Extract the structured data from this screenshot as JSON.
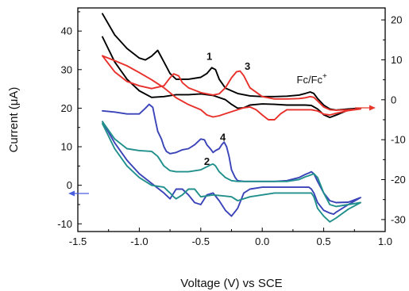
{
  "chart_data": {
    "type": "line",
    "xlabel": "Voltage (V) vs SCE",
    "ylabel": "Current (μA)",
    "xlim": [
      -1.5,
      1.0
    ],
    "ylim": [
      -12,
      46
    ],
    "ylim_right": [
      -33,
      23
    ],
    "x_ticks": [
      "-1.5",
      "-1.0",
      "-0.5",
      "0.0",
      "0.5",
      "1.0"
    ],
    "y_ticks": [
      "-10",
      "0",
      "10",
      "20",
      "30",
      "40"
    ],
    "y_ticks_right": [
      "-30",
      "-20",
      "-10",
      "0",
      "10",
      "20"
    ],
    "annotations": [
      {
        "text": "1",
        "x": -0.43,
        "y": 32.5
      },
      {
        "text": "3",
        "x": -0.12,
        "y": 30
      },
      {
        "text": "4",
        "x": -0.32,
        "y": 11.5
      },
      {
        "text": "2",
        "x": -0.45,
        "y": 5.3
      },
      {
        "text": "Fc/Fc",
        "superscript": "+",
        "x": 0.28,
        "y": 26.5
      }
    ],
    "axis_arrows": [
      {
        "side": "left",
        "color": "#4a5fe0"
      },
      {
        "side": "right",
        "color": "#e83a2a"
      }
    ],
    "series": [
      {
        "color": "#000000",
        "axis": "left",
        "x": [
          -1.3,
          -1.2,
          -1.1,
          -1.0,
          -0.95,
          -0.9,
          -0.85,
          -0.8,
          -0.75,
          -0.7,
          -0.6,
          -0.5,
          -0.45,
          -0.41,
          -0.38,
          -0.35,
          -0.3,
          -0.2,
          -0.1,
          0.0,
          0.1,
          0.2,
          0.3,
          0.35,
          0.39,
          0.42,
          0.45,
          0.5,
          0.55,
          0.6,
          0.7,
          0.8,
          0.7,
          0.6,
          0.55,
          0.5,
          0.45,
          0.4,
          0.35,
          0.3,
          0.2,
          0.1,
          0.0,
          -0.1,
          -0.15,
          -0.2,
          -0.25,
          -0.3,
          -0.4,
          -0.5,
          -0.6,
          -0.7,
          -0.8,
          -0.9,
          -1.0,
          -1.1,
          -1.2,
          -1.3
        ],
        "y": [
          44.5,
          39,
          35.5,
          33,
          32.5,
          33.5,
          35,
          32,
          29,
          27.5,
          27.5,
          28,
          29,
          30.5,
          30,
          27.5,
          25.2,
          23.8,
          23.2,
          23,
          23,
          23.1,
          23.4,
          23.8,
          24.2,
          23.8,
          22.5,
          20.8,
          19.8,
          19.5,
          19.8,
          20,
          19.5,
          18.2,
          17.6,
          18.3,
          19.8,
          20.7,
          20.8,
          20.8,
          20.8,
          21,
          21.1,
          20.8,
          20.1,
          20,
          21,
          22.2,
          23.3,
          23.7,
          23.5,
          23.5,
          23,
          22.8,
          24.5,
          27.5,
          32,
          38.5
        ]
      },
      {
        "color": "#e8302a",
        "axis": "right",
        "x": [
          -1.3,
          -1.2,
          -1.1,
          -1.0,
          -0.9,
          -0.8,
          -0.75,
          -0.72,
          -0.68,
          -0.65,
          -0.6,
          -0.5,
          -0.4,
          -0.35,
          -0.3,
          -0.25,
          -0.21,
          -0.18,
          -0.15,
          -0.1,
          0.0,
          0.1,
          0.2,
          0.3,
          0.35,
          0.39,
          0.42,
          0.45,
          0.5,
          0.55,
          0.6,
          0.7,
          0.8,
          0.7,
          0.6,
          0.55,
          0.5,
          0.45,
          0.4,
          0.35,
          0.3,
          0.2,
          0.15,
          0.1,
          0.05,
          0.0,
          -0.05,
          -0.1,
          -0.15,
          -0.2,
          -0.25,
          -0.3,
          -0.35,
          -0.4,
          -0.45,
          -0.5,
          -0.6,
          -0.7,
          -0.8,
          -0.9,
          -1.0,
          -1.1,
          -1.2,
          -1.3
        ],
        "y": [
          11,
          7,
          4.6,
          3.5,
          2.8,
          3.5,
          5.5,
          6.5,
          6,
          4.3,
          3,
          1.8,
          1.2,
          1.5,
          3,
          5.5,
          7,
          7.2,
          6,
          3,
          0.8,
          0.2,
          0.2,
          0.3,
          0.5,
          0.8,
          0.6,
          -0.3,
          -1.8,
          -2.5,
          -2.6,
          -2.5,
          -2.3,
          -2.7,
          -3.4,
          -3.8,
          -3.6,
          -2.8,
          -2.5,
          -2.5,
          -2.5,
          -2.5,
          -3.5,
          -5,
          -5,
          -3.8,
          -2.5,
          -1.8,
          -2,
          -2.5,
          -3,
          -3.5,
          -4,
          -4.3,
          -3.8,
          -2.5,
          -1.2,
          0.5,
          3,
          5,
          6.8,
          8.5,
          9.8,
          11
        ]
      },
      {
        "color": "#3a44b8",
        "axis": "left",
        "x": [
          -1.3,
          -1.2,
          -1.1,
          -1.0,
          -0.95,
          -0.92,
          -0.89,
          -0.87,
          -0.85,
          -0.82,
          -0.8,
          -0.78,
          -0.75,
          -0.7,
          -0.65,
          -0.6,
          -0.55,
          -0.5,
          -0.47,
          -0.45,
          -0.42,
          -0.4,
          -0.38,
          -0.35,
          -0.33,
          -0.31,
          -0.29,
          -0.27,
          -0.25,
          -0.22,
          -0.2,
          -0.15,
          -0.1,
          0.0,
          0.1,
          0.2,
          0.3,
          0.35,
          0.38,
          0.4,
          0.42,
          0.45,
          0.5,
          0.55,
          0.6,
          0.7,
          0.8,
          0.7,
          0.6,
          0.58,
          0.55,
          0.5,
          0.45,
          0.42,
          0.4,
          0.38,
          0.35,
          0.3,
          0.2,
          0.1,
          0.0,
          -0.1,
          -0.15,
          -0.2,
          -0.25,
          -0.3,
          -0.35,
          -0.4,
          -0.45,
          -0.5,
          -0.55,
          -0.6,
          -0.65,
          -0.7,
          -0.75,
          -0.8,
          -0.9,
          -1.0,
          -1.1,
          -1.2,
          -1.3
        ],
        "y": [
          19.3,
          19,
          18.5,
          18.5,
          20,
          21,
          20.2,
          17,
          14,
          12,
          10,
          8.8,
          8.2,
          8.5,
          9.2,
          9.5,
          10.5,
          12,
          11.8,
          10.5,
          9.4,
          8.5,
          9,
          9.5,
          10.5,
          11.2,
          10,
          7.5,
          4,
          2,
          1.2,
          1,
          1,
          1,
          1,
          1.2,
          2,
          2.8,
          3.2,
          3.5,
          3,
          1,
          -2,
          -4,
          -4.5,
          -4.4,
          -3.2,
          -5,
          -7,
          -7.5,
          -7.2,
          -6.5,
          -4.5,
          -2,
          -1,
          -0.5,
          -0.5,
          -0.5,
          -0.5,
          -0.5,
          -0.5,
          -1,
          -2,
          -6,
          -8,
          -6.5,
          -4,
          -2,
          -2.5,
          -5,
          -4.5,
          -2.5,
          -1,
          -1,
          -3.5,
          -2,
          0.5,
          3,
          6.5,
          11,
          16.5
        ]
      },
      {
        "color": "#21908c",
        "axis": "left",
        "x": [
          -1.3,
          -1.2,
          -1.1,
          -1.0,
          -0.9,
          -0.85,
          -0.8,
          -0.75,
          -0.7,
          -0.6,
          -0.5,
          -0.45,
          -0.42,
          -0.4,
          -0.38,
          -0.35,
          -0.3,
          -0.25,
          -0.2,
          -0.15,
          -0.1,
          0.0,
          0.1,
          0.2,
          0.3,
          0.35,
          0.38,
          0.42,
          0.45,
          0.5,
          0.55,
          0.6,
          0.7,
          0.8,
          0.7,
          0.6,
          0.55,
          0.5,
          0.45,
          0.42,
          0.4,
          0.38,
          0.35,
          0.3,
          0.2,
          0.1,
          0.0,
          -0.1,
          -0.2,
          -0.25,
          -0.3,
          -0.4,
          -0.5,
          -0.55,
          -0.6,
          -0.65,
          -0.7,
          -0.72,
          -0.75,
          -0.8,
          -0.9,
          -1.0,
          -1.1,
          -1.2,
          -1.3
        ],
        "y": [
          16.5,
          12,
          9.5,
          9,
          8.8,
          7.5,
          5,
          3.8,
          3.5,
          3.5,
          4,
          4.8,
          5.3,
          5.5,
          5,
          3.5,
          2,
          1.2,
          1,
          1,
          1,
          1,
          1,
          1,
          1.5,
          2.2,
          2.5,
          3,
          2,
          -2,
          -5,
          -5.5,
          -5,
          -4.5,
          -6.2,
          -8.5,
          -9.5,
          -8,
          -6,
          -3,
          -2,
          -2,
          -2,
          -2,
          -2,
          -2,
          -2.5,
          -3,
          -4,
          -3,
          -2.8,
          -2.5,
          -3,
          -1,
          -1,
          -2.5,
          -3.5,
          -3,
          -2,
          -0.5,
          0,
          2,
          5,
          9.5,
          16
        ]
      }
    ]
  }
}
